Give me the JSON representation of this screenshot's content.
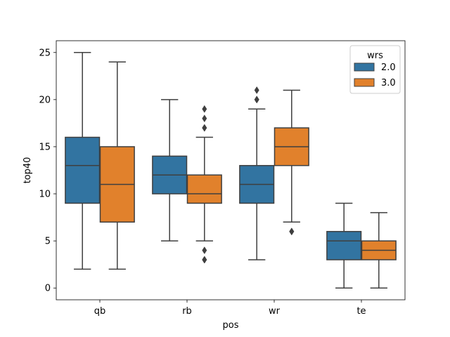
{
  "chart_data": {
    "type": "box",
    "xlabel": "pos",
    "ylabel": "top40",
    "ylim": [
      -1.25,
      26.25
    ],
    "yticks": [
      0,
      5,
      10,
      15,
      20,
      25
    ],
    "categories": [
      "qb",
      "rb",
      "wr",
      "te"
    ],
    "grid": false,
    "legend": {
      "title": "wrs",
      "placement": "top-right",
      "entries": [
        "2.0",
        "3.0"
      ]
    },
    "series": [
      {
        "name": "2.0",
        "color": "#3274a1",
        "boxes": [
          {
            "category": "qb",
            "whisker_low": 2,
            "q1": 9,
            "median": 13,
            "q3": 16,
            "whisker_high": 25,
            "outliers": []
          },
          {
            "category": "rb",
            "whisker_low": 5,
            "q1": 10,
            "median": 12,
            "q3": 14,
            "whisker_high": 20,
            "outliers": []
          },
          {
            "category": "wr",
            "whisker_low": 3,
            "q1": 9,
            "median": 11,
            "q3": 13,
            "whisker_high": 19,
            "outliers": [
              20,
              20,
              21
            ]
          },
          {
            "category": "te",
            "whisker_low": 0,
            "q1": 3,
            "median": 5,
            "q3": 6,
            "whisker_high": 9,
            "outliers": []
          }
        ]
      },
      {
        "name": "3.0",
        "color": "#e1812c",
        "boxes": [
          {
            "category": "qb",
            "whisker_low": 2,
            "q1": 7,
            "median": 11,
            "q3": 15,
            "whisker_high": 24,
            "outliers": []
          },
          {
            "category": "rb",
            "whisker_low": 5,
            "q1": 9,
            "median": 10,
            "q3": 12,
            "whisker_high": 16,
            "outliers": [
              3,
              3,
              4,
              17,
              17,
              18,
              19
            ]
          },
          {
            "category": "wr",
            "whisker_low": 7,
            "q1": 13,
            "median": 15,
            "q3": 17,
            "whisker_high": 21,
            "outliers": [
              6,
              6
            ]
          },
          {
            "category": "te",
            "whisker_low": 0,
            "q1": 3,
            "median": 4,
            "q3": 5,
            "whisker_high": 8,
            "outliers": []
          }
        ]
      }
    ]
  }
}
